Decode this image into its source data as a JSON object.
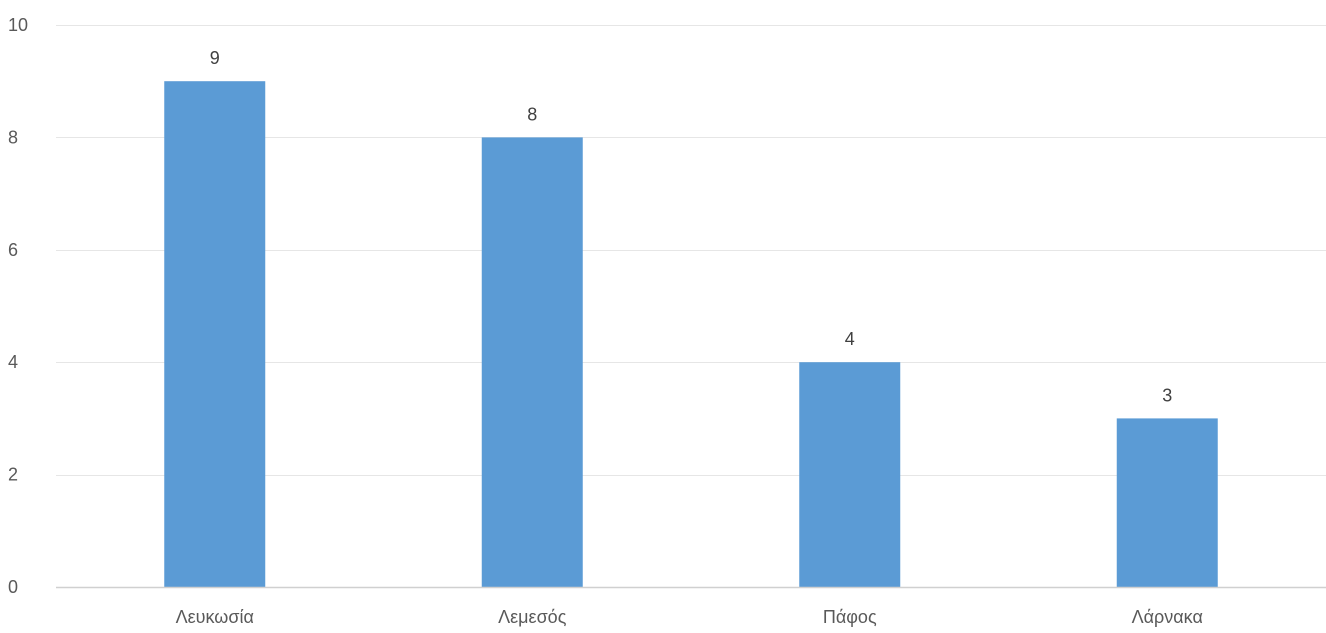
{
  "chart_data": {
    "type": "bar",
    "title": "",
    "xlabel": "",
    "ylabel": "",
    "categories": [
      "Λευκωσία",
      "Λεμεσός",
      "Πάφος",
      "Λάρνακα"
    ],
    "values": [
      9,
      8,
      4,
      3
    ],
    "ylim": [
      0,
      10
    ],
    "yticks": [
      0,
      2,
      4,
      6,
      8,
      10
    ],
    "data_labels": [
      "9",
      "8",
      "4",
      "3"
    ],
    "grid": true,
    "legend": "none",
    "colors": {
      "bar": "#5b9bd5",
      "grid": "#e6e6e6",
      "axis": "#d0d0d0",
      "text": "#595959",
      "label": "#404040"
    }
  }
}
